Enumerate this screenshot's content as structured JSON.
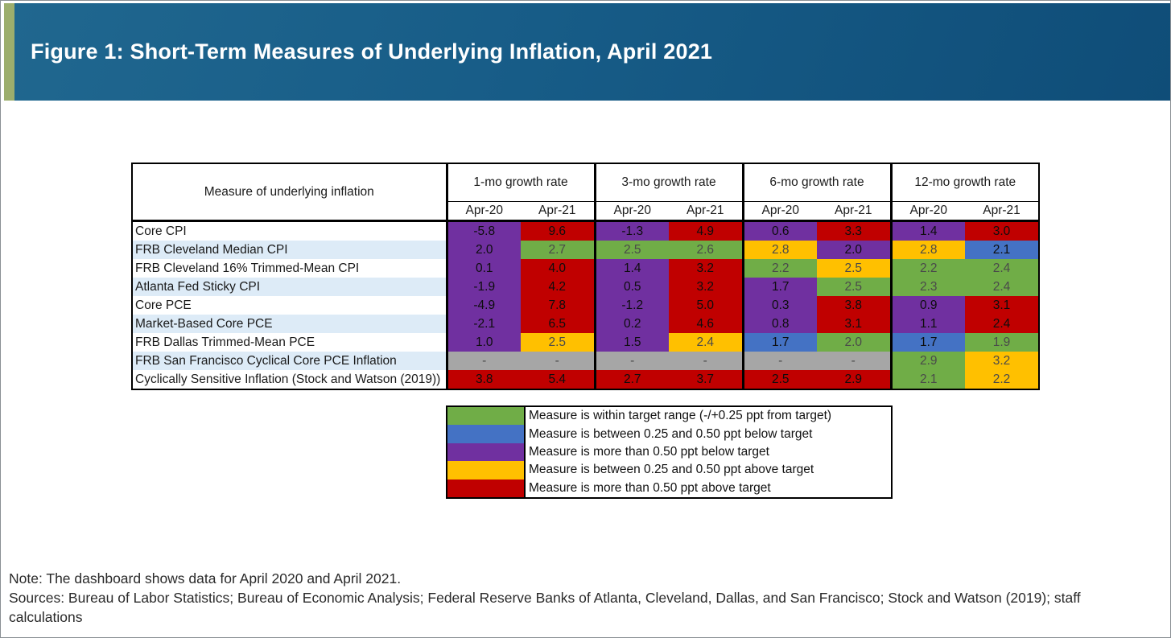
{
  "banner": {
    "title": "Figure 1: Short-Term Measures of Underlying Inflation, April 2021"
  },
  "colors": {
    "green": "#70AD47",
    "blue": "#4472C4",
    "purple": "#7030A0",
    "yellow": "#FFC000",
    "red": "#C00000",
    "gray": "#A6A6A6",
    "row_alt": "#DDEBF7",
    "banner_blue": "#155981",
    "banner_stripe": "#9CAE6D"
  },
  "chart_data": {
    "type": "heatmap",
    "title": "Figure 1: Short-Term Measures of Underlying Inflation, April 2021",
    "row_header_label": "Measure of underlying inflation",
    "column_groups": [
      "1-mo growth rate",
      "3-mo growth rate",
      "6-mo growth rate",
      "12-mo growth rate"
    ],
    "sub_columns": [
      "Apr-20",
      "Apr-21"
    ],
    "rows": [
      {
        "label": "Core CPI",
        "cells": [
          {
            "v": "-5.8",
            "s": "purple"
          },
          {
            "v": "9.6",
            "s": "red"
          },
          {
            "v": "-1.3",
            "s": "purple"
          },
          {
            "v": "4.9",
            "s": "red"
          },
          {
            "v": "0.6",
            "s": "purple"
          },
          {
            "v": "3.3",
            "s": "red"
          },
          {
            "v": "1.4",
            "s": "purple"
          },
          {
            "v": "3.0",
            "s": "red"
          }
        ]
      },
      {
        "label": "FRB Cleveland Median CPI",
        "cells": [
          {
            "v": "2.0",
            "s": "purple"
          },
          {
            "v": "2.7",
            "s": "green"
          },
          {
            "v": "2.5",
            "s": "green"
          },
          {
            "v": "2.6",
            "s": "green"
          },
          {
            "v": "2.8",
            "s": "yellow"
          },
          {
            "v": "2.0",
            "s": "purple"
          },
          {
            "v": "2.8",
            "s": "yellow"
          },
          {
            "v": "2.1",
            "s": "blue"
          }
        ]
      },
      {
        "label": "FRB Cleveland 16% Trimmed-Mean CPI",
        "cells": [
          {
            "v": "0.1",
            "s": "purple"
          },
          {
            "v": "4.0",
            "s": "red"
          },
          {
            "v": "1.4",
            "s": "purple"
          },
          {
            "v": "3.2",
            "s": "red"
          },
          {
            "v": "2.2",
            "s": "green"
          },
          {
            "v": "2.5",
            "s": "yellow"
          },
          {
            "v": "2.2",
            "s": "green"
          },
          {
            "v": "2.4",
            "s": "green"
          }
        ]
      },
      {
        "label": "Atlanta Fed Sticky CPI",
        "cells": [
          {
            "v": "-1.9",
            "s": "purple"
          },
          {
            "v": "4.2",
            "s": "red"
          },
          {
            "v": "0.5",
            "s": "purple"
          },
          {
            "v": "3.2",
            "s": "red"
          },
          {
            "v": "1.7",
            "s": "purple"
          },
          {
            "v": "2.5",
            "s": "green"
          },
          {
            "v": "2.3",
            "s": "green"
          },
          {
            "v": "2.4",
            "s": "green"
          }
        ]
      },
      {
        "label": "Core PCE",
        "cells": [
          {
            "v": "-4.9",
            "s": "purple"
          },
          {
            "v": "7.8",
            "s": "red"
          },
          {
            "v": "-1.2",
            "s": "purple"
          },
          {
            "v": "5.0",
            "s": "red"
          },
          {
            "v": "0.3",
            "s": "purple"
          },
          {
            "v": "3.8",
            "s": "red"
          },
          {
            "v": "0.9",
            "s": "purple"
          },
          {
            "v": "3.1",
            "s": "red"
          }
        ]
      },
      {
        "label": "Market-Based Core PCE",
        "cells": [
          {
            "v": "-2.1",
            "s": "purple"
          },
          {
            "v": "6.5",
            "s": "red"
          },
          {
            "v": "0.2",
            "s": "purple"
          },
          {
            "v": "4.6",
            "s": "red"
          },
          {
            "v": "0.8",
            "s": "purple"
          },
          {
            "v": "3.1",
            "s": "red"
          },
          {
            "v": "1.1",
            "s": "purple"
          },
          {
            "v": "2.4",
            "s": "red"
          }
        ]
      },
      {
        "label": "FRB Dallas Trimmed-Mean PCE",
        "cells": [
          {
            "v": "1.0",
            "s": "purple"
          },
          {
            "v": "2.5",
            "s": "yellow"
          },
          {
            "v": "1.5",
            "s": "purple"
          },
          {
            "v": "2.4",
            "s": "yellow"
          },
          {
            "v": "1.7",
            "s": "blue"
          },
          {
            "v": "2.0",
            "s": "green"
          },
          {
            "v": "1.7",
            "s": "blue"
          },
          {
            "v": "1.9",
            "s": "green"
          }
        ]
      },
      {
        "label": "FRB San Francisco Cyclical Core PCE Inflation",
        "cells": [
          {
            "v": "-",
            "s": "gray"
          },
          {
            "v": "-",
            "s": "gray"
          },
          {
            "v": "-",
            "s": "gray"
          },
          {
            "v": "-",
            "s": "gray"
          },
          {
            "v": "-",
            "s": "gray"
          },
          {
            "v": "-",
            "s": "gray"
          },
          {
            "v": "2.9",
            "s": "green"
          },
          {
            "v": "3.2",
            "s": "yellow"
          }
        ]
      },
      {
        "label": "Cyclically Sensitive Inflation (Stock and Watson (2019))",
        "cells": [
          {
            "v": "3.8",
            "s": "red"
          },
          {
            "v": "5.4",
            "s": "red"
          },
          {
            "v": "2.7",
            "s": "red"
          },
          {
            "v": "3.7",
            "s": "red"
          },
          {
            "v": "2.5",
            "s": "red"
          },
          {
            "v": "2.9",
            "s": "red"
          },
          {
            "v": "2.1",
            "s": "green"
          },
          {
            "v": "2.2",
            "s": "yellow"
          }
        ]
      }
    ]
  },
  "legend": {
    "items": [
      {
        "color_key": "green",
        "label": "Measure is within target range (-/+0.25 ppt from target)"
      },
      {
        "color_key": "blue",
        "label": "Measure is between 0.25 and 0.50 ppt below target"
      },
      {
        "color_key": "purple",
        "label": "Measure is more than 0.50 ppt below target"
      },
      {
        "color_key": "yellow",
        "label": "Measure is between 0.25 and 0.50 ppt above target"
      },
      {
        "color_key": "red",
        "label": "Measure is more than 0.50 ppt above target"
      }
    ]
  },
  "notes": {
    "note": "Note: The dashboard shows data for April 2020 and April 2021.",
    "sources": "Sources: Bureau of Labor Statistics; Bureau of Economic Analysis; Federal Reserve Banks of Atlanta, Cleveland, Dallas, and San Francisco; Stock and Watson (2019); staff calculations"
  }
}
